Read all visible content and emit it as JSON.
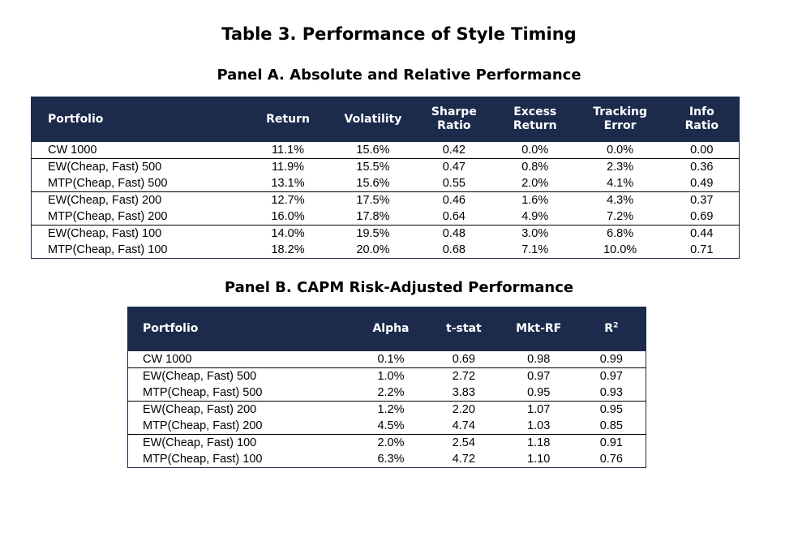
{
  "title": "Table 3. Performance of Style Timing",
  "panel_a": {
    "title": "Panel A. Absolute and Relative Performance",
    "headers": [
      "Portfolio",
      "Return",
      "Volatility",
      "Sharpe\nRatio",
      "Excess\nReturn",
      "Tracking\nError",
      "Info\nRatio"
    ],
    "rows": [
      [
        "CW 1000",
        "11.1%",
        "15.6%",
        "0.42",
        "0.0%",
        "0.0%",
        "0.00"
      ],
      [
        "EW(Cheap, Fast) 500",
        "11.9%",
        "15.5%",
        "0.47",
        "0.8%",
        "2.3%",
        "0.36"
      ],
      [
        "MTP(Cheap, Fast) 500",
        "13.1%",
        "15.6%",
        "0.55",
        "2.0%",
        "4.1%",
        "0.49"
      ],
      [
        "EW(Cheap, Fast) 200",
        "12.7%",
        "17.5%",
        "0.46",
        "1.6%",
        "4.3%",
        "0.37"
      ],
      [
        "MTP(Cheap, Fast) 200",
        "16.0%",
        "17.8%",
        "0.64",
        "4.9%",
        "7.2%",
        "0.69"
      ],
      [
        "EW(Cheap, Fast) 100",
        "14.0%",
        "19.5%",
        "0.48",
        "3.0%",
        "6.8%",
        "0.44"
      ],
      [
        "MTP(Cheap, Fast) 100",
        "18.2%",
        "20.0%",
        "0.68",
        "7.1%",
        "10.0%",
        "0.71"
      ]
    ]
  },
  "panel_b": {
    "title": "Panel B. CAPM Risk-Adjusted Performance",
    "headers": [
      "Portfolio",
      "Alpha",
      "t-stat",
      "Mkt-RF",
      "R"
    ],
    "r2_superscript": "2",
    "rows": [
      [
        "CW 1000",
        "0.1%",
        "0.69",
        "0.98",
        "0.99"
      ],
      [
        "EW(Cheap, Fast) 500",
        "1.0%",
        "2.72",
        "0.97",
        "0.97"
      ],
      [
        "MTP(Cheap, Fast) 500",
        "2.2%",
        "3.83",
        "0.95",
        "0.93"
      ],
      [
        "EW(Cheap, Fast) 200",
        "1.2%",
        "2.20",
        "1.07",
        "0.95"
      ],
      [
        "MTP(Cheap, Fast) 200",
        "4.5%",
        "4.74",
        "1.03",
        "0.85"
      ],
      [
        "EW(Cheap, Fast) 100",
        "2.0%",
        "2.54",
        "1.18",
        "0.91"
      ],
      [
        "MTP(Cheap, Fast) 100",
        "6.3%",
        "4.72",
        "1.10",
        "0.76"
      ]
    ]
  },
  "colors": {
    "header_bg": "#1c2b4b",
    "header_text": "#ffffff"
  }
}
